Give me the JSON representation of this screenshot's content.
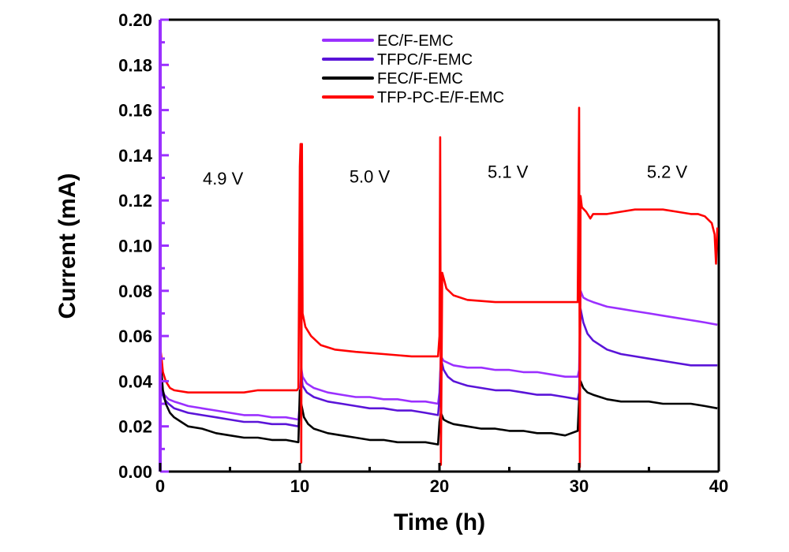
{
  "chart_data": {
    "type": "line",
    "title": "",
    "xlabel": "Time (h)",
    "ylabel": "Current (mA)",
    "xlim": [
      0,
      40
    ],
    "ylim": [
      0,
      0.2
    ],
    "xticks": [
      0,
      10,
      20,
      30,
      40
    ],
    "xtick_labels": [
      "0",
      "10",
      "20",
      "30",
      "40"
    ],
    "yticks": [
      0.0,
      0.02,
      0.04,
      0.06,
      0.08,
      0.1,
      0.12,
      0.14,
      0.16,
      0.18,
      0.2
    ],
    "ytick_labels": [
      "0.00",
      "0.02",
      "0.04",
      "0.06",
      "0.08",
      "0.10",
      "0.12",
      "0.14",
      "0.16",
      "0.18",
      "0.20"
    ],
    "grid": false,
    "legend_position": "top-center",
    "annotations": [
      {
        "text": "4.9 V",
        "x": 4.5,
        "y": 0.127
      },
      {
        "text": "5.0 V",
        "x": 15.0,
        "y": 0.128
      },
      {
        "text": "5.1 V",
        "x": 24.9,
        "y": 0.13
      },
      {
        "text": "5.2 V",
        "x": 36.3,
        "y": 0.13
      }
    ],
    "series": [
      {
        "name": "EC/F-EMC",
        "color": "#9b30ff",
        "x": [
          0.05,
          0.3,
          0.6,
          1.0,
          1.5,
          2.0,
          3.0,
          4.0,
          5.0,
          6.0,
          7.0,
          8.0,
          9.0,
          9.9,
          10.0,
          10.1,
          10.2,
          10.5,
          11.0,
          12.0,
          13.0,
          14.0,
          15.0,
          16.0,
          17.0,
          18.0,
          19.0,
          19.9,
          20.0,
          20.1,
          20.3,
          21.0,
          22.0,
          23.0,
          24.0,
          25.0,
          26.0,
          27.0,
          28.0,
          29.0,
          29.9,
          30.0,
          30.1,
          30.3,
          30.6,
          31.0,
          32.0,
          33.0,
          34.0,
          35.0,
          36.0,
          37.0,
          38.0,
          39.0,
          39.9
        ],
        "y": [
          0.038,
          0.034,
          0.032,
          0.031,
          0.03,
          0.029,
          0.028,
          0.027,
          0.026,
          0.025,
          0.025,
          0.024,
          0.024,
          0.023,
          0.03,
          0.046,
          0.042,
          0.039,
          0.037,
          0.035,
          0.034,
          0.033,
          0.033,
          0.032,
          0.032,
          0.031,
          0.031,
          0.03,
          0.035,
          0.051,
          0.049,
          0.047,
          0.046,
          0.046,
          0.045,
          0.045,
          0.044,
          0.044,
          0.043,
          0.042,
          0.042,
          0.045,
          0.08,
          0.077,
          0.076,
          0.075,
          0.073,
          0.072,
          0.071,
          0.07,
          0.069,
          0.068,
          0.067,
          0.066,
          0.065
        ]
      },
      {
        "name": "TFPC/F-EMC",
        "color": "#5a14d8",
        "x": [
          0.05,
          0.3,
          0.6,
          1.0,
          1.5,
          2.0,
          3.0,
          4.0,
          5.0,
          6.0,
          7.0,
          8.0,
          9.0,
          9.9,
          10.0,
          10.1,
          10.2,
          10.5,
          11.0,
          12.0,
          13.0,
          14.0,
          15.0,
          16.0,
          17.0,
          18.0,
          19.0,
          19.9,
          20.0,
          20.1,
          20.3,
          20.6,
          21.0,
          21.5,
          22.0,
          23.0,
          24.0,
          25.0,
          26.0,
          27.0,
          28.0,
          29.0,
          29.9,
          30.0,
          30.1,
          30.3,
          30.6,
          31.0,
          31.5,
          32.0,
          33.0,
          34.0,
          35.0,
          36.0,
          37.0,
          38.0,
          39.0,
          39.9
        ],
        "y": [
          0.036,
          0.032,
          0.03,
          0.028,
          0.027,
          0.026,
          0.025,
          0.024,
          0.023,
          0.022,
          0.022,
          0.021,
          0.021,
          0.02,
          0.028,
          0.044,
          0.038,
          0.035,
          0.033,
          0.031,
          0.03,
          0.029,
          0.028,
          0.028,
          0.027,
          0.027,
          0.026,
          0.025,
          0.032,
          0.05,
          0.045,
          0.042,
          0.04,
          0.039,
          0.038,
          0.037,
          0.036,
          0.036,
          0.035,
          0.034,
          0.034,
          0.033,
          0.032,
          0.035,
          0.072,
          0.066,
          0.061,
          0.058,
          0.056,
          0.054,
          0.052,
          0.051,
          0.05,
          0.049,
          0.048,
          0.047,
          0.047,
          0.047
        ]
      },
      {
        "name": "FEC/F-EMC",
        "color": "#000000",
        "x": [
          0.05,
          0.2,
          0.4,
          0.7,
          1.0,
          1.5,
          2.0,
          3.0,
          4.0,
          5.0,
          6.0,
          7.0,
          8.0,
          9.0,
          9.9,
          10.0,
          10.1,
          10.3,
          10.6,
          11.0,
          12.0,
          13.0,
          14.0,
          15.0,
          16.0,
          17.0,
          18.0,
          19.0,
          19.9,
          20.0,
          20.1,
          20.3,
          20.6,
          21.0,
          22.0,
          23.0,
          24.0,
          25.0,
          26.0,
          27.0,
          28.0,
          29.0,
          29.9,
          30.0,
          30.1,
          30.3,
          30.6,
          31.0,
          32.0,
          33.0,
          34.0,
          35.0,
          36.0,
          37.0,
          38.0,
          39.0,
          39.9
        ],
        "y": [
          0.047,
          0.036,
          0.03,
          0.026,
          0.024,
          0.022,
          0.02,
          0.019,
          0.017,
          0.016,
          0.015,
          0.015,
          0.014,
          0.014,
          0.013,
          0.036,
          0.03,
          0.024,
          0.021,
          0.019,
          0.017,
          0.016,
          0.015,
          0.014,
          0.014,
          0.013,
          0.013,
          0.013,
          0.012,
          0.022,
          0.026,
          0.023,
          0.022,
          0.021,
          0.02,
          0.019,
          0.019,
          0.018,
          0.018,
          0.017,
          0.017,
          0.016,
          0.018,
          0.032,
          0.04,
          0.037,
          0.035,
          0.034,
          0.032,
          0.031,
          0.031,
          0.031,
          0.03,
          0.03,
          0.03,
          0.029,
          0.028
        ]
      },
      {
        "name": "TFP-PC-E/F-EMC",
        "color": "#ff0000",
        "x": [
          0.0,
          0.1,
          0.2,
          0.4,
          0.7,
          1.0,
          2.0,
          3.0,
          4.0,
          5.0,
          6.0,
          7.0,
          8.0,
          9.0,
          9.8,
          9.9,
          10.0,
          10.05,
          10.1,
          10.15,
          10.2,
          10.4,
          10.8,
          11.5,
          12.5,
          14.0,
          16.0,
          18.0,
          19.9,
          20.0,
          20.05,
          20.1,
          20.2,
          20.5,
          21.0,
          22.0,
          24.0,
          26.0,
          28.0,
          29.9,
          30.0,
          30.05,
          30.1,
          30.2,
          30.5,
          30.8,
          31.0,
          32.0,
          33.0,
          34.0,
          35.0,
          36.0,
          37.0,
          38.0,
          38.5,
          39.0,
          39.5,
          39.7,
          39.8,
          39.9
        ],
        "y": [
          0.055,
          0.05,
          0.044,
          0.04,
          0.037,
          0.036,
          0.035,
          0.035,
          0.035,
          0.035,
          0.035,
          0.036,
          0.036,
          0.036,
          0.036,
          0.037,
          0.135,
          0.145,
          0.004,
          0.145,
          0.07,
          0.064,
          0.06,
          0.056,
          0.054,
          0.053,
          0.052,
          0.051,
          0.051,
          0.06,
          0.148,
          0.003,
          0.088,
          0.081,
          0.078,
          0.076,
          0.075,
          0.075,
          0.075,
          0.075,
          0.161,
          0.002,
          0.122,
          0.117,
          0.115,
          0.112,
          0.114,
          0.114,
          0.115,
          0.116,
          0.116,
          0.116,
          0.115,
          0.114,
          0.114,
          0.113,
          0.11,
          0.105,
          0.092,
          0.108
        ]
      }
    ]
  }
}
